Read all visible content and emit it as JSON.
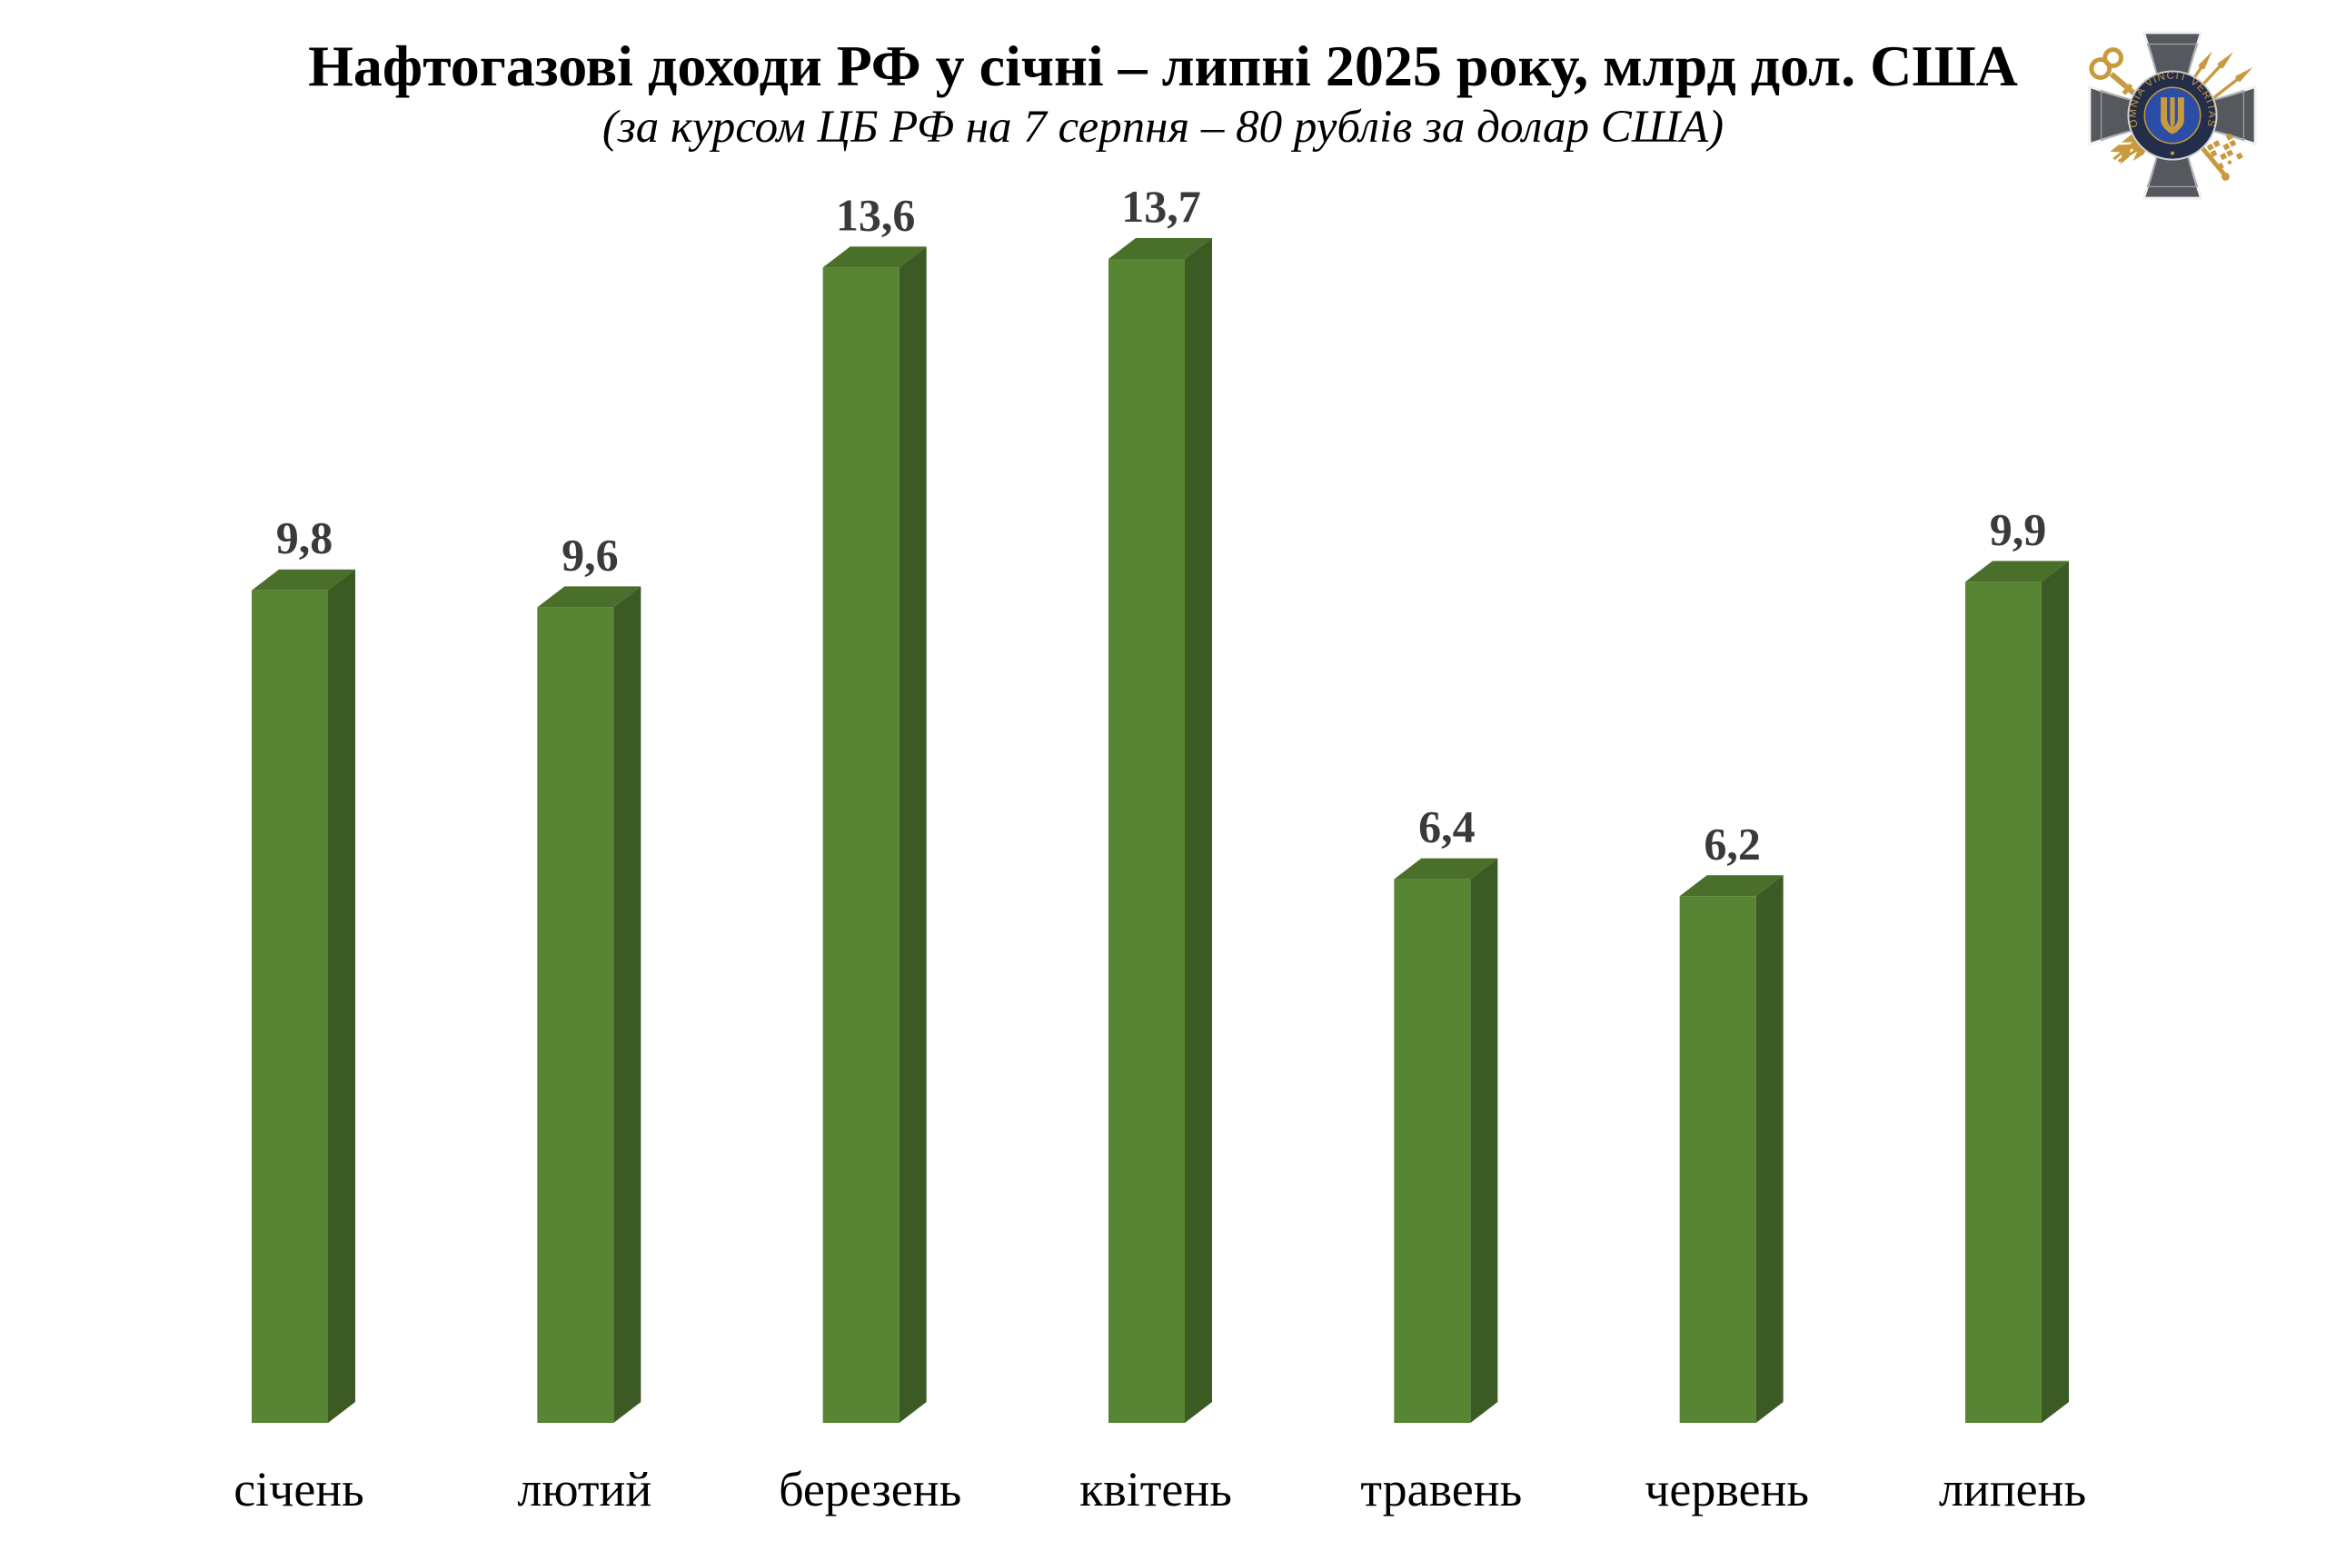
{
  "header": {
    "title": "Нафтогазові доходи РФ у січні – липні 2025 року, млрд дол. США",
    "subtitle": "(за курсом ЦБ РФ на 7 серпня – 80 рублів за долар США)"
  },
  "logo": {
    "motto": "OMNIA VINCIT VERITAS"
  },
  "chart_data": {
    "type": "bar",
    "style": "3d-column",
    "title": "Нафтогазові доходи РФ у січні – липні 2025 року, млрд дол. США",
    "subtitle": "(за курсом ЦБ РФ на 7 серпня – 80 рублів за долар США)",
    "unit": "млрд дол. США",
    "categories": [
      "січень",
      "лютий",
      "березень",
      "квітень",
      "травень",
      "червень",
      "липень"
    ],
    "values": [
      9.8,
      9.6,
      13.6,
      13.7,
      6.4,
      6.2,
      9.9
    ],
    "value_labels": [
      "9,8",
      "9,6",
      "13,6",
      "13,7",
      "6,4",
      "6,2",
      "9,9"
    ],
    "ylim": [
      0,
      14.4
    ],
    "grid": false,
    "legend_position": "none",
    "colors": {
      "bar_front": "#578534",
      "bar_top": "#4a6f2b",
      "bar_side": "#3b5a24",
      "value_label": "#3a3a3a",
      "category_label": "#000000"
    }
  }
}
